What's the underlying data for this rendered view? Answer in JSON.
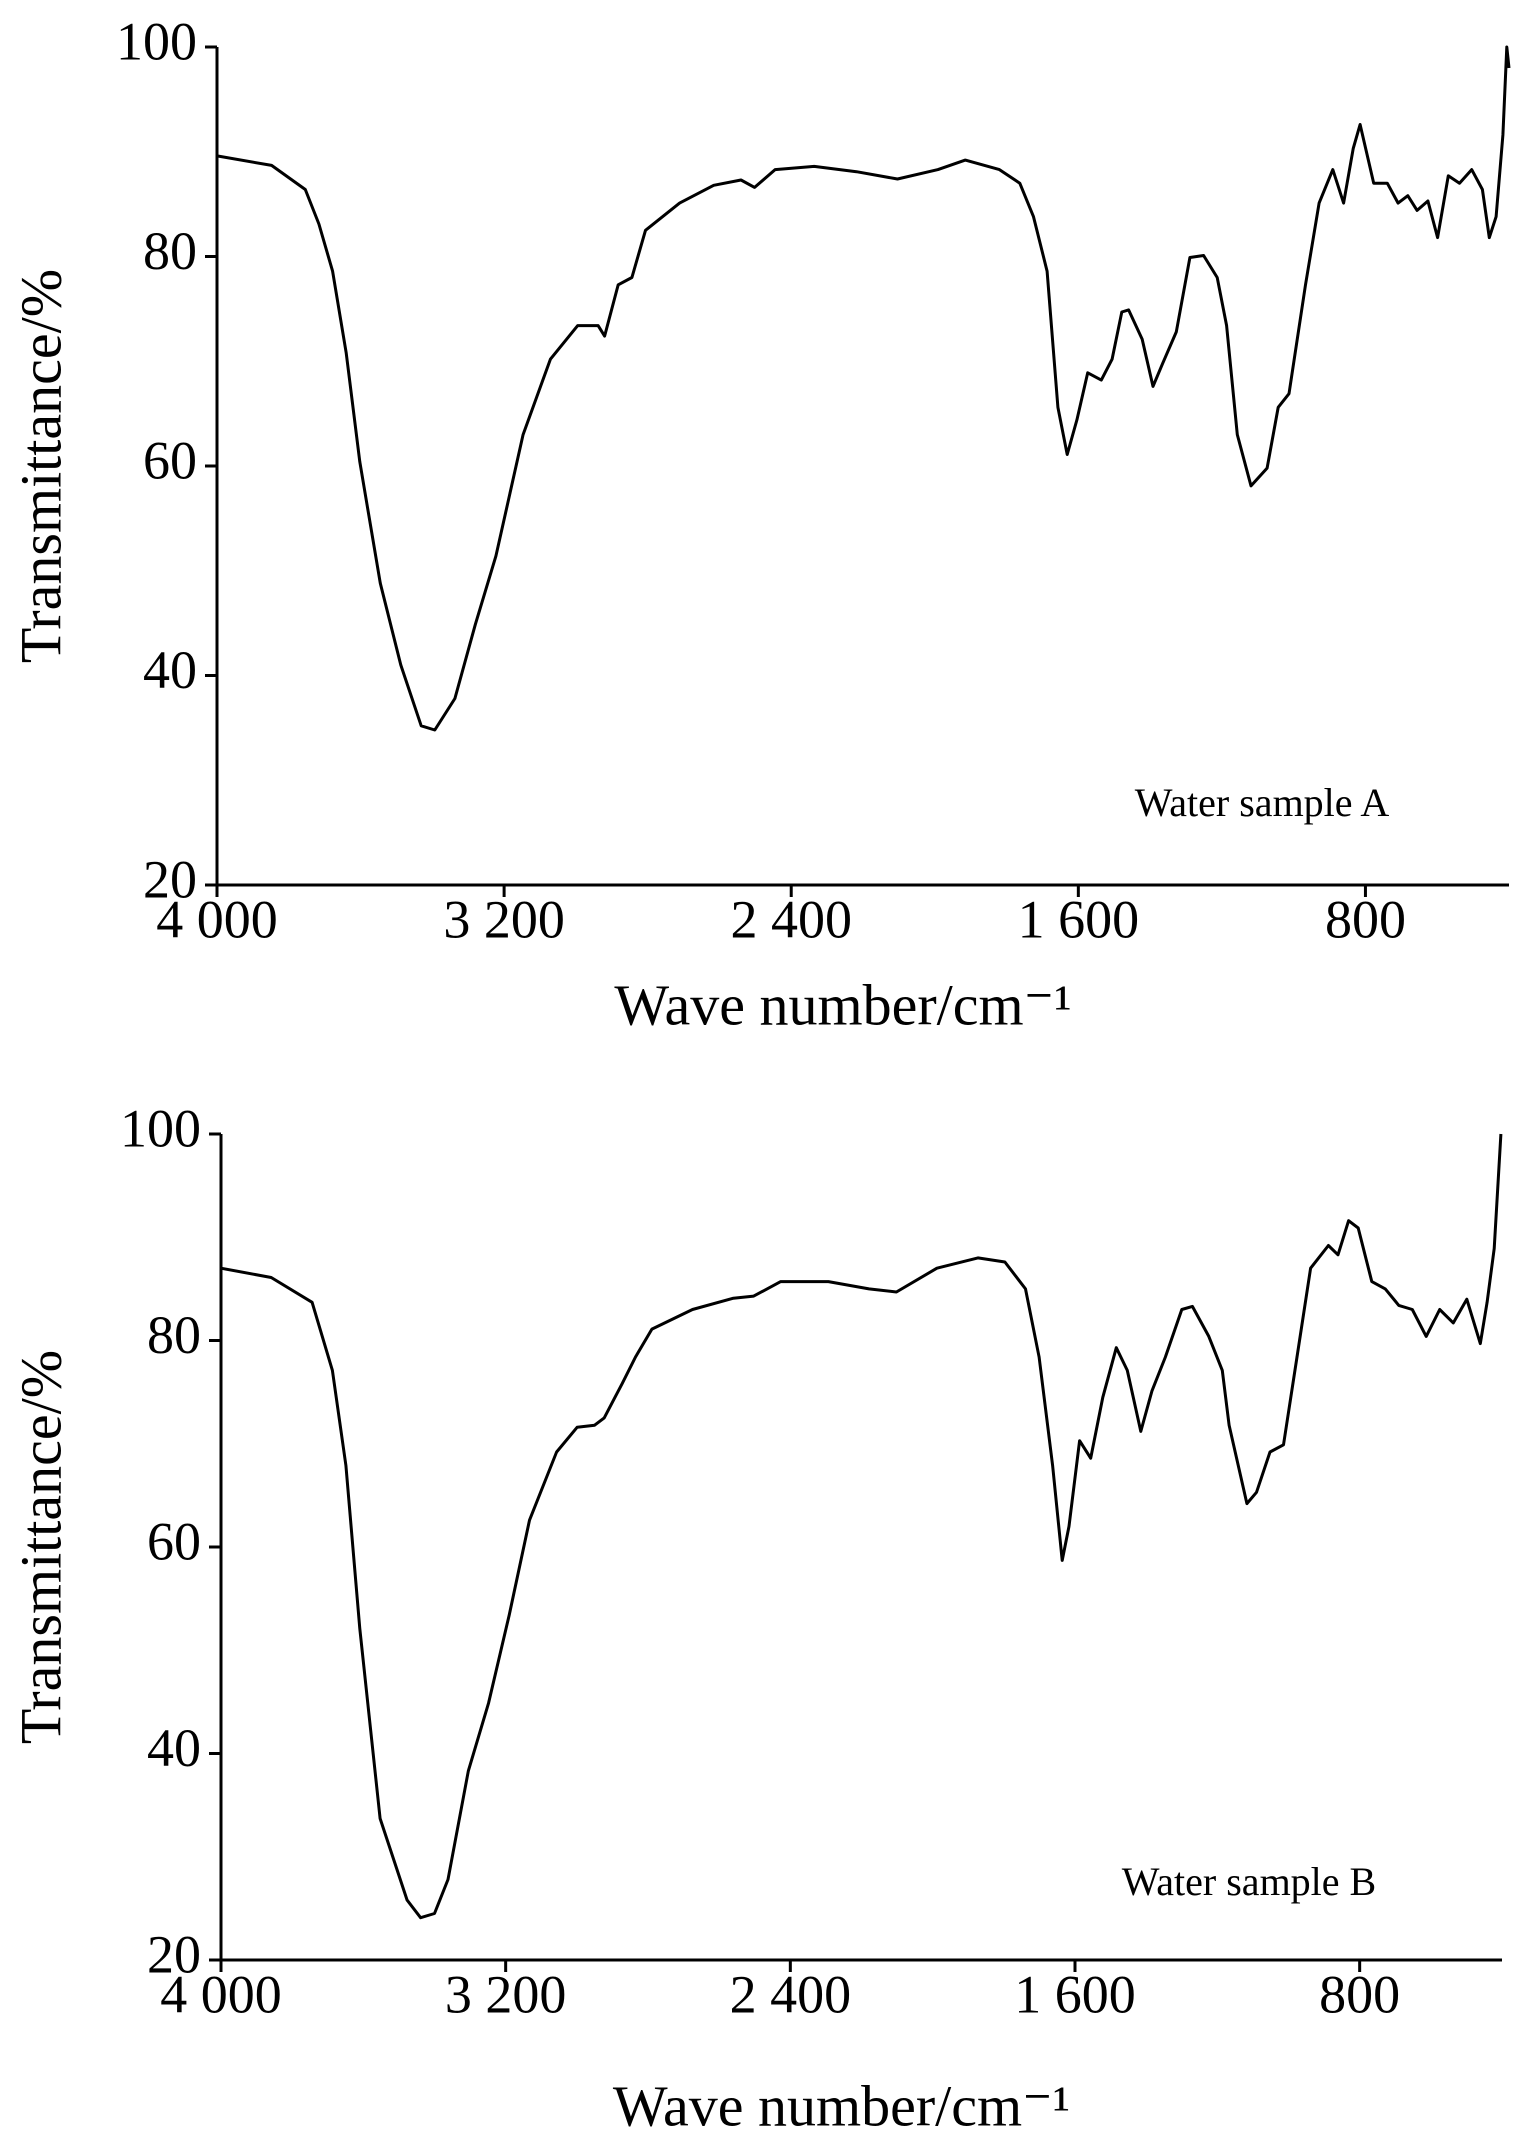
{
  "chart_data": [
    {
      "type": "line",
      "annotation": "Water sample A",
      "x_label": "Wave number/cm⁻¹",
      "y_label": "Transmittance/%",
      "xlim": [
        4000,
        400
      ],
      "ylim": [
        20,
        100
      ],
      "xticks": [
        {
          "value": 4000,
          "label": "4 000"
        },
        {
          "value": 3200,
          "label": "3 200"
        },
        {
          "value": 2400,
          "label": "2 400"
        },
        {
          "value": 1600,
          "label": "1 600"
        },
        800
      ],
      "yticks": [
        20,
        40,
        60,
        80,
        100
      ],
      "x": [
        4000,
        3848,
        3754,
        3716,
        3678,
        3640,
        3602,
        3545,
        3488,
        3431,
        3393,
        3337,
        3280,
        3223,
        3147,
        3071,
        2995,
        2938,
        2920,
        2882,
        2844,
        2806,
        2711,
        2616,
        2540,
        2502,
        2445,
        2336,
        2218,
        2104,
        1991,
        1915,
        1820,
        1763,
        1725,
        1687,
        1657,
        1631,
        1604,
        1574,
        1536,
        1506,
        1479,
        1460,
        1422,
        1392,
        1365,
        1327,
        1289,
        1251,
        1213,
        1187,
        1157,
        1119,
        1074,
        1043,
        1013,
        967,
        929,
        891,
        861,
        834,
        815,
        777,
        739,
        709,
        682,
        656,
        626,
        599,
        569,
        538,
        504,
        474,
        455,
        436,
        417,
        406,
        400
      ],
      "series": [
        {
          "color": "#000000",
          "values": [
            89.6,
            88.7,
            86.4,
            83.1,
            78.6,
            70.8,
            60.4,
            48.8,
            41,
            35.2,
            34.8,
            37.8,
            44.9,
            51.4,
            63,
            70.2,
            73.4,
            73.4,
            72.4,
            77.3,
            78,
            82.5,
            85.1,
            86.8,
            87.3,
            86.6,
            88.3,
            88.6,
            88.1,
            87.4,
            88.3,
            89.2,
            88.3,
            87,
            83.8,
            78.6,
            65.6,
            61.1,
            64.4,
            68.9,
            68.2,
            70.2,
            74.7,
            74.9,
            72.1,
            67.6,
            69.8,
            72.8,
            79.9,
            80.1,
            78,
            73.4,
            63,
            58.1,
            59.8,
            65.6,
            66.9,
            77.3,
            85.1,
            88.3,
            85.1,
            90.3,
            92.6,
            87,
            87,
            85.1,
            85.8,
            84.4,
            85.3,
            81.8,
            87.7,
            87,
            88.3,
            86.4,
            81.8,
            83.8,
            91.6,
            100,
            98
          ]
        }
      ]
    },
    {
      "type": "line",
      "annotation": "Water sample B",
      "x_label": "Wave number/cm⁻¹",
      "y_label": "Transmittance/%",
      "xlim": [
        4000,
        400
      ],
      "ylim": [
        20,
        100
      ],
      "xticks": [
        {
          "value": 4000,
          "label": "4 000"
        },
        {
          "value": 3200,
          "label": "3 200"
        },
        {
          "value": 2400,
          "label": "2 400"
        },
        {
          "value": 1600,
          "label": "1 600"
        },
        800
      ],
      "yticks": [
        20,
        40,
        60,
        80,
        100
      ],
      "x": [
        4000,
        3859,
        3744,
        3687,
        3649,
        3610,
        3553,
        3477,
        3439,
        3400,
        3362,
        3305,
        3248,
        3190,
        3133,
        3057,
        2999,
        2950,
        2923,
        2873,
        2835,
        2789,
        2675,
        2560,
        2503,
        2427,
        2293,
        2179,
        2102,
        1988,
        1873,
        1797,
        1739,
        1701,
        1663,
        1636,
        1617,
        1587,
        1556,
        1522,
        1484,
        1453,
        1415,
        1384,
        1346,
        1300,
        1270,
        1224,
        1186,
        1167,
        1117,
        1090,
        1052,
        1014,
        976,
        938,
        888,
        861,
        831,
        804,
        766,
        728,
        690,
        652,
        613,
        575,
        537,
        499,
        461,
        442,
        422,
        403
      ],
      "series": [
        {
          "color": "#000000",
          "values": [
            87,
            86.1,
            83.7,
            77.1,
            67.9,
            52.1,
            33.7,
            25.8,
            24.1,
            24.5,
            27.8,
            38.3,
            44.9,
            53.4,
            62.6,
            69.2,
            71.6,
            71.8,
            72.5,
            75.8,
            78.4,
            81.1,
            83,
            84.1,
            84.3,
            85.7,
            85.7,
            85,
            84.7,
            87,
            88,
            87.6,
            85,
            78.4,
            67.9,
            58.7,
            62,
            70.3,
            68.6,
            74.5,
            79.3,
            77.1,
            71.2,
            75.1,
            78.4,
            83,
            83.3,
            80.4,
            77.1,
            71.8,
            64.2,
            65.3,
            69.2,
            69.9,
            78.4,
            87,
            89.2,
            88.3,
            91.6,
            90.9,
            85.7,
            85,
            83.4,
            83,
            80.4,
            83,
            81.7,
            84,
            79.7,
            83.7,
            88.9,
            100
          ]
        }
      ]
    }
  ]
}
